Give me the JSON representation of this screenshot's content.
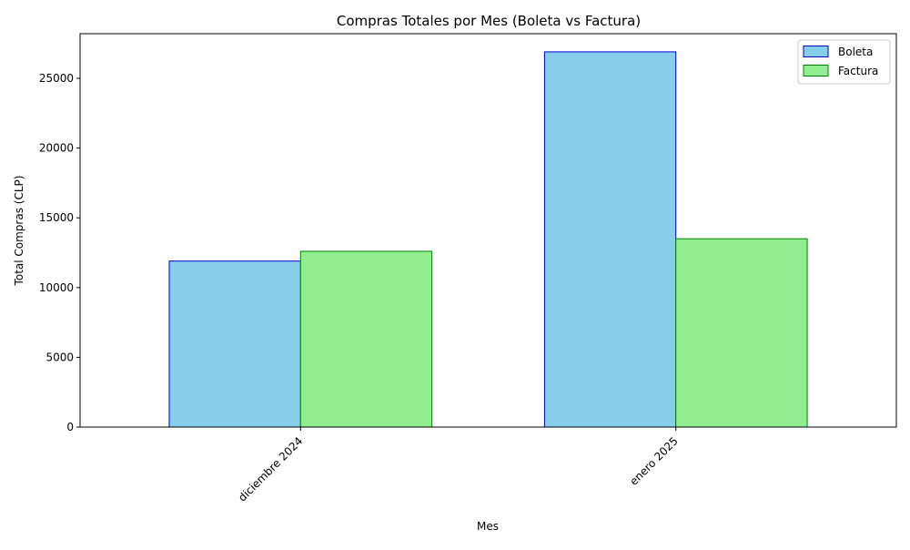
{
  "chart_data": {
    "type": "bar",
    "title": "Compras Totales por Mes (Boleta vs Factura)",
    "xlabel": "Mes",
    "ylabel": "Total Compras (CLP)",
    "categories": [
      "diciembre 2024",
      "enero 2025"
    ],
    "series": [
      {
        "name": "Boleta",
        "values": [
          11900,
          26900
        ],
        "fill": "#87CEEB",
        "stroke": "#0000CD"
      },
      {
        "name": "Factura",
        "values": [
          12600,
          13500
        ],
        "fill": "#90EE90",
        "stroke": "#008000"
      }
    ],
    "ylim": [
      0,
      28200
    ],
    "yticks": [
      0,
      5000,
      10000,
      15000,
      20000,
      25000
    ],
    "grid": false,
    "legend": "top-right",
    "xtick_rotation": "45°, right-aligned"
  }
}
